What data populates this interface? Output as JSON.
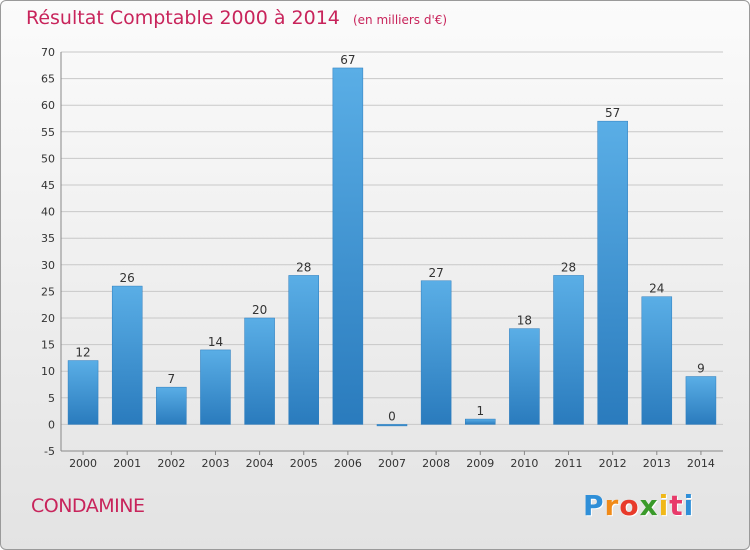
{
  "title": "Résultat Comptable 2000 à 2014",
  "subtitle": "(en milliers d'€)",
  "commune": "CONDAMINE",
  "logo": {
    "letters": [
      "P",
      "r",
      "o",
      "x",
      "i",
      "t",
      "i"
    ],
    "colors": [
      "#2f8fd8",
      "#f08a18",
      "#e83a2a",
      "#3a9a2a",
      "#f0b818",
      "#e83a6a",
      "#2f8fd8"
    ]
  },
  "colors": {
    "bar_light": "#5aaee6",
    "bar_dark": "#2a7bbd",
    "grid": "#c8c8c8",
    "text": "#333333",
    "accent": "#c8245b"
  },
  "chart_data": {
    "type": "bar",
    "categories": [
      "2000",
      "2001",
      "2002",
      "2003",
      "2004",
      "2005",
      "2006",
      "2007",
      "2008",
      "2009",
      "2010",
      "2011",
      "2012",
      "2013",
      "2014"
    ],
    "values": [
      12,
      26,
      7,
      14,
      20,
      28,
      67,
      0,
      27,
      1,
      18,
      28,
      57,
      24,
      9
    ],
    "data_labels": [
      "12",
      "26",
      "7",
      "14",
      "20",
      "28",
      "67",
      "0",
      "27",
      "1",
      "18",
      "28",
      "57",
      "24",
      "9"
    ],
    "y_ticks": [
      -5,
      0,
      5,
      10,
      15,
      20,
      25,
      30,
      35,
      40,
      45,
      50,
      55,
      60,
      65,
      70
    ],
    "ylim": [
      -5,
      70
    ],
    "grid": true,
    "xlabel": "",
    "ylabel": ""
  }
}
